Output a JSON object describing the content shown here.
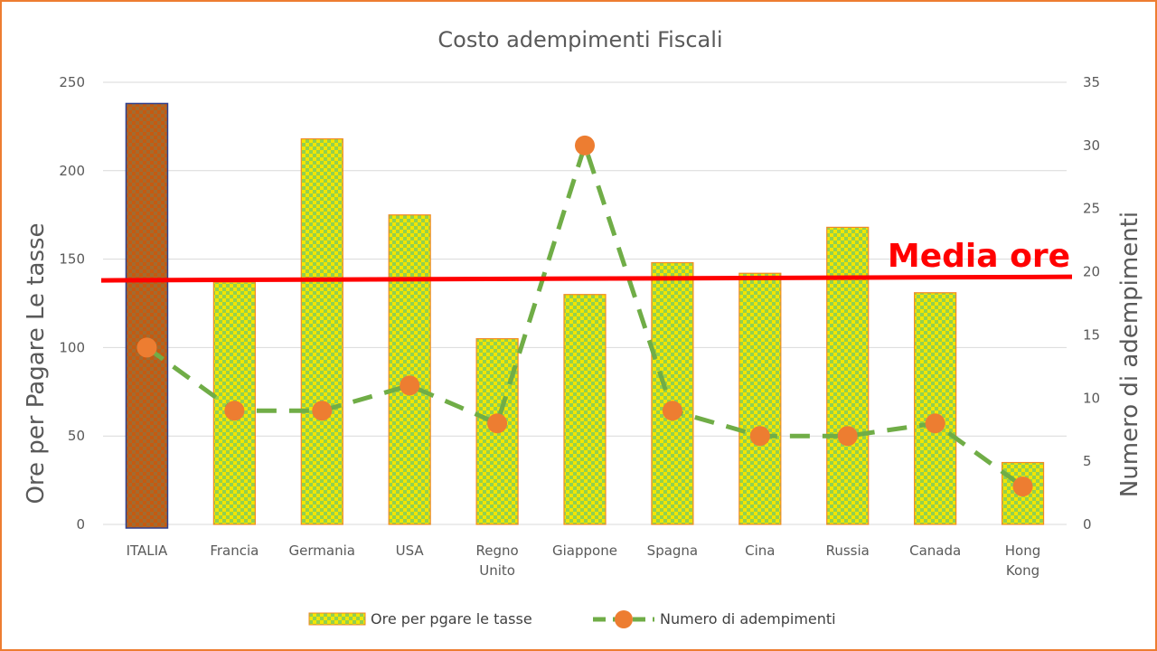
{
  "chart_data": {
    "type": "bar",
    "title": "Costo adempimenti Fiscali",
    "categories": [
      "ITALIA",
      "Francia",
      "Germania",
      "USA",
      "Regno Unito",
      "Giappone",
      "Spagna",
      "Cina",
      "Russia",
      "Canada",
      "Hong Kong"
    ],
    "category_lines": [
      [
        "ITALIA"
      ],
      [
        "Francia"
      ],
      [
        "Germania"
      ],
      [
        "USA"
      ],
      [
        "Regno",
        "Unito"
      ],
      [
        "Giappone"
      ],
      [
        "Spagna"
      ],
      [
        "Cina"
      ],
      [
        "Russia"
      ],
      [
        "Canada"
      ],
      [
        "Hong",
        "Kong"
      ]
    ],
    "series": [
      {
        "name": "Ore per pgare le tasse",
        "type": "bar",
        "axis": "left",
        "values": [
          238,
          137,
          218,
          175,
          105,
          130,
          148,
          142,
          168,
          131,
          35
        ],
        "highlight_index": 0,
        "fill_pattern": "checker",
        "colors": {
          "primary": "#f2e600",
          "secondary": "#92d050",
          "border": "#f08a24"
        },
        "highlight_colors": {
          "primary": "#c55a11",
          "secondary": "#a36b2f",
          "border": "#2e3f8f"
        }
      },
      {
        "name": "Numero di adempimenti",
        "type": "line",
        "axis": "right",
        "values": [
          14,
          9,
          9,
          11,
          8,
          30,
          9,
          7,
          7,
          8,
          3
        ],
        "line_color": "#70ad47",
        "marker_color": "#ed7d31",
        "dash": true
      }
    ],
    "ylabel": "Ore per Pagare Le tasse",
    "y2label": "Numero di adempimenti",
    "ylim": [
      0,
      250
    ],
    "yticks": [
      0,
      50,
      100,
      150,
      200,
      250
    ],
    "y2lim": [
      0,
      35
    ],
    "y2ticks": [
      0,
      5,
      10,
      15,
      20,
      25,
      30,
      35
    ],
    "grid": true,
    "legend_position": "bottom",
    "reference_line": {
      "label": "Media ore",
      "value_start": 138,
      "value_end": 140,
      "color": "#ff0000"
    }
  }
}
